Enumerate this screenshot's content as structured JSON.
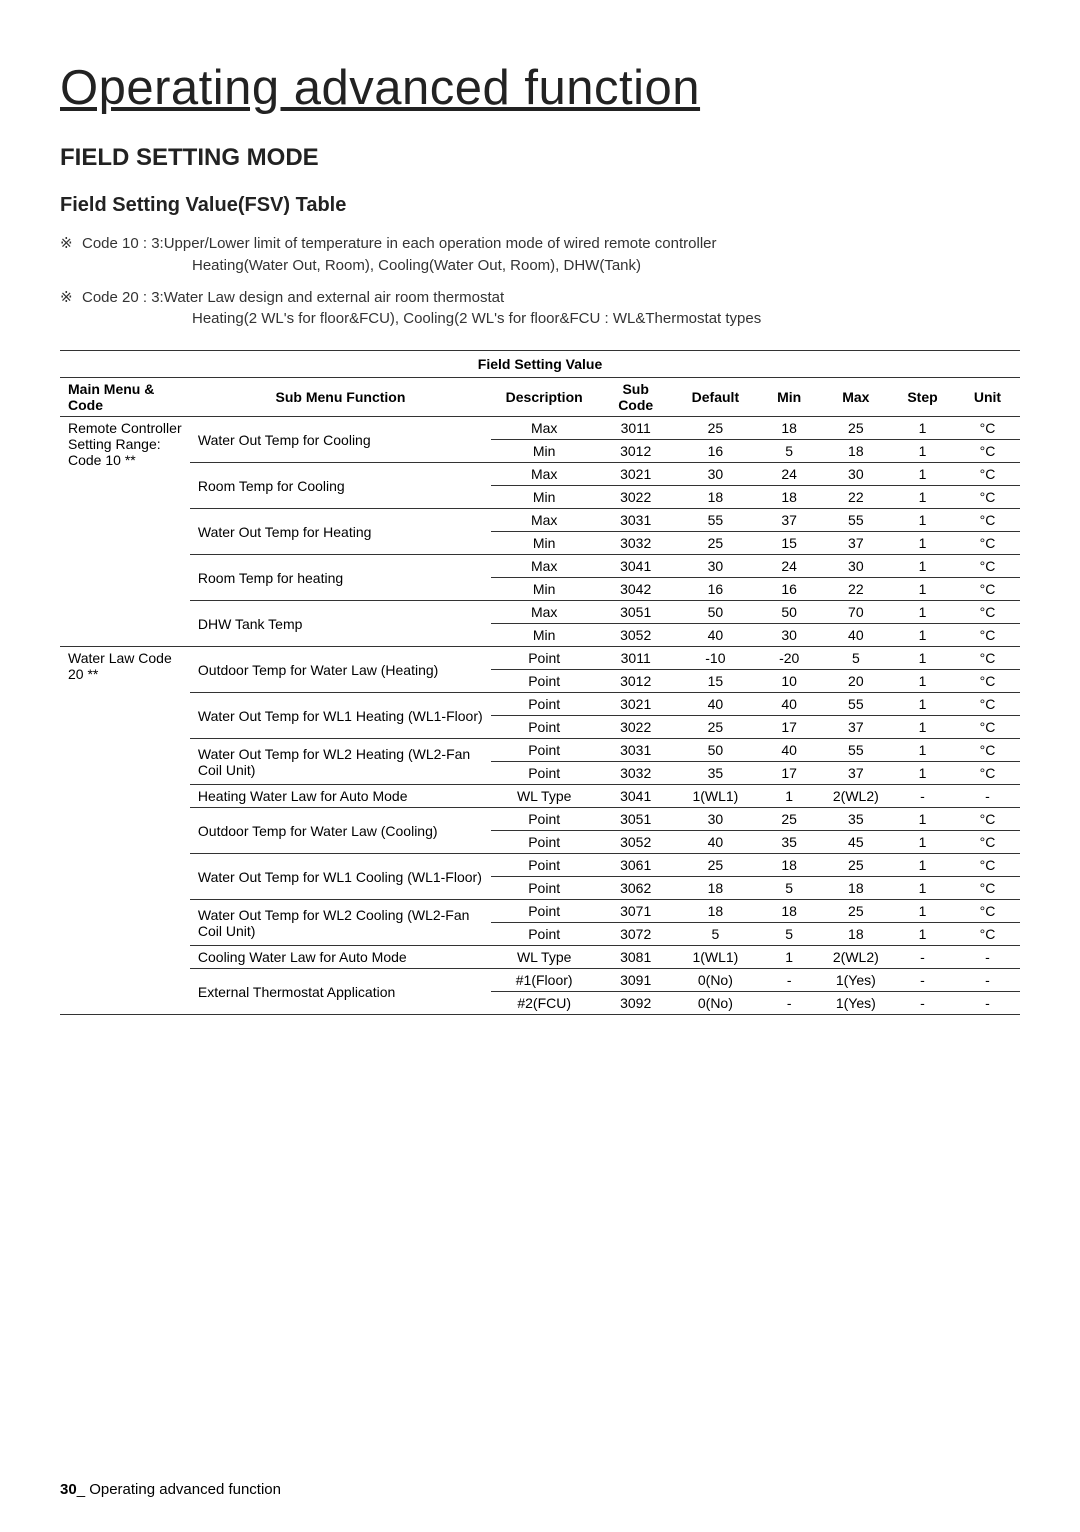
{
  "title": "Operating advanced function",
  "section": "FIELD SETTING MODE",
  "subsection": "Field Setting Value(FSV) Table",
  "notes": [
    {
      "line1": "Code 10 : 3:Upper/Lower limit of temperature in each operation mode of wired remote controller",
      "line2": "Heating(Water Out, Room), Cooling(Water Out, Room), DHW(Tank)"
    },
    {
      "line1": "Code 20 : 3:Water Law design and external air room thermostat",
      "line2": "Heating(2 WL's for floor&FCU), Cooling(2 WL's for floor&FCU : WL&Thermostat types"
    }
  ],
  "table_title": "Field Setting Value",
  "headers": [
    "Main Menu & Code",
    "Sub Menu Function",
    "Description",
    "Sub Code",
    "Default",
    "Min",
    "Max",
    "Step",
    "Unit"
  ],
  "groups": [
    {
      "main": "Remote Controller Setting Range: Code 10 **",
      "rows": [
        {
          "sub": "Water Out Temp for Cooling",
          "desc": "Max",
          "code": "3011",
          "default": "25",
          "min": "18",
          "max": "25",
          "step": "1",
          "unit": "°C",
          "rs": 2
        },
        {
          "sub": "",
          "desc": "Min",
          "code": "3012",
          "default": "16",
          "min": "5",
          "max": "18",
          "step": "1",
          "unit": "°C"
        },
        {
          "sub": "Room Temp for Cooling",
          "desc": "Max",
          "code": "3021",
          "default": "30",
          "min": "24",
          "max": "30",
          "step": "1",
          "unit": "°C",
          "rs": 2
        },
        {
          "sub": "",
          "desc": "Min",
          "code": "3022",
          "default": "18",
          "min": "18",
          "max": "22",
          "step": "1",
          "unit": "°C"
        },
        {
          "sub": "Water Out Temp for Heating",
          "desc": "Max",
          "code": "3031",
          "default": "55",
          "min": "37",
          "max": "55",
          "step": "1",
          "unit": "°C",
          "rs": 2
        },
        {
          "sub": "",
          "desc": "Min",
          "code": "3032",
          "default": "25",
          "min": "15",
          "max": "37",
          "step": "1",
          "unit": "°C"
        },
        {
          "sub": "Room Temp for heating",
          "desc": "Max",
          "code": "3041",
          "default": "30",
          "min": "24",
          "max": "30",
          "step": "1",
          "unit": "°C",
          "rs": 2
        },
        {
          "sub": "",
          "desc": "Min",
          "code": "3042",
          "default": "16",
          "min": "16",
          "max": "22",
          "step": "1",
          "unit": "°C"
        },
        {
          "sub": "DHW Tank Temp",
          "desc": "Max",
          "code": "3051",
          "default": "50",
          "min": "50",
          "max": "70",
          "step": "1",
          "unit": "°C",
          "rs": 2
        },
        {
          "sub": "",
          "desc": "Min",
          "code": "3052",
          "default": "40",
          "min": "30",
          "max": "40",
          "step": "1",
          "unit": "°C"
        }
      ]
    },
    {
      "main": "Water Law  Code 20 **",
      "rows": [
        {
          "sub": "Outdoor Temp for Water Law (Heating)",
          "desc": "Point",
          "code": "3011",
          "default": "-10",
          "min": "-20",
          "max": "5",
          "step": "1",
          "unit": "°C",
          "rs": 2
        },
        {
          "sub": "",
          "desc": "Point",
          "code": "3012",
          "default": "15",
          "min": "10",
          "max": "20",
          "step": "1",
          "unit": "°C"
        },
        {
          "sub": "Water Out Temp for WL1 Heating (WL1-Floor)",
          "desc": "Point",
          "code": "3021",
          "default": "40",
          "min": "40",
          "max": "55",
          "step": "1",
          "unit": "°C",
          "rs": 2
        },
        {
          "sub": "",
          "desc": "Point",
          "code": "3022",
          "default": "25",
          "min": "17",
          "max": "37",
          "step": "1",
          "unit": "°C"
        },
        {
          "sub": "Water Out Temp for WL2 Heating (WL2-Fan Coil Unit)",
          "desc": "Point",
          "code": "3031",
          "default": "50",
          "min": "40",
          "max": "55",
          "step": "1",
          "unit": "°C",
          "rs": 2
        },
        {
          "sub": "",
          "desc": "Point",
          "code": "3032",
          "default": "35",
          "min": "17",
          "max": "37",
          "step": "1",
          "unit": "°C"
        },
        {
          "sub": "Heating Water Law for Auto Mode",
          "desc": "WL Type",
          "code": "3041",
          "default": "1(WL1)",
          "min": "1",
          "max": "2(WL2)",
          "step": "-",
          "unit": "-",
          "rs": 1
        },
        {
          "sub": "Outdoor Temp for Water Law (Cooling)",
          "desc": "Point",
          "code": "3051",
          "default": "30",
          "min": "25",
          "max": "35",
          "step": "1",
          "unit": "°C",
          "rs": 2
        },
        {
          "sub": "",
          "desc": "Point",
          "code": "3052",
          "default": "40",
          "min": "35",
          "max": "45",
          "step": "1",
          "unit": "°C"
        },
        {
          "sub": "Water Out Temp for WL1 Cooling (WL1-Floor)",
          "desc": "Point",
          "code": "3061",
          "default": "25",
          "min": "18",
          "max": "25",
          "step": "1",
          "unit": "°C",
          "rs": 2
        },
        {
          "sub": "",
          "desc": "Point",
          "code": "3062",
          "default": "18",
          "min": "5",
          "max": "18",
          "step": "1",
          "unit": "°C"
        },
        {
          "sub": "Water Out Temp for WL2 Cooling (WL2-Fan Coil Unit)",
          "desc": "Point",
          "code": "3071",
          "default": "18",
          "min": "18",
          "max": "25",
          "step": "1",
          "unit": "°C",
          "rs": 2
        },
        {
          "sub": "",
          "desc": "Point",
          "code": "3072",
          "default": "5",
          "min": "5",
          "max": "18",
          "step": "1",
          "unit": "°C"
        },
        {
          "sub": "Cooling Water Law for Auto Mode",
          "desc": "WL Type",
          "code": "3081",
          "default": "1(WL1)",
          "min": "1",
          "max": "2(WL2)",
          "step": "-",
          "unit": "-",
          "rs": 1
        },
        {
          "sub": "External Thermostat Application",
          "desc": "#1(Floor)",
          "code": "3091",
          "default": "0(No)",
          "min": "-",
          "max": "1(Yes)",
          "step": "-",
          "unit": "-",
          "rs": 2
        },
        {
          "sub": "",
          "desc": "#2(FCU)",
          "code": "3092",
          "default": "0(No)",
          "min": "-",
          "max": "1(Yes)",
          "step": "-",
          "unit": "-"
        }
      ]
    }
  ],
  "footer_page": "30",
  "footer_text": "_ Operating advanced function"
}
